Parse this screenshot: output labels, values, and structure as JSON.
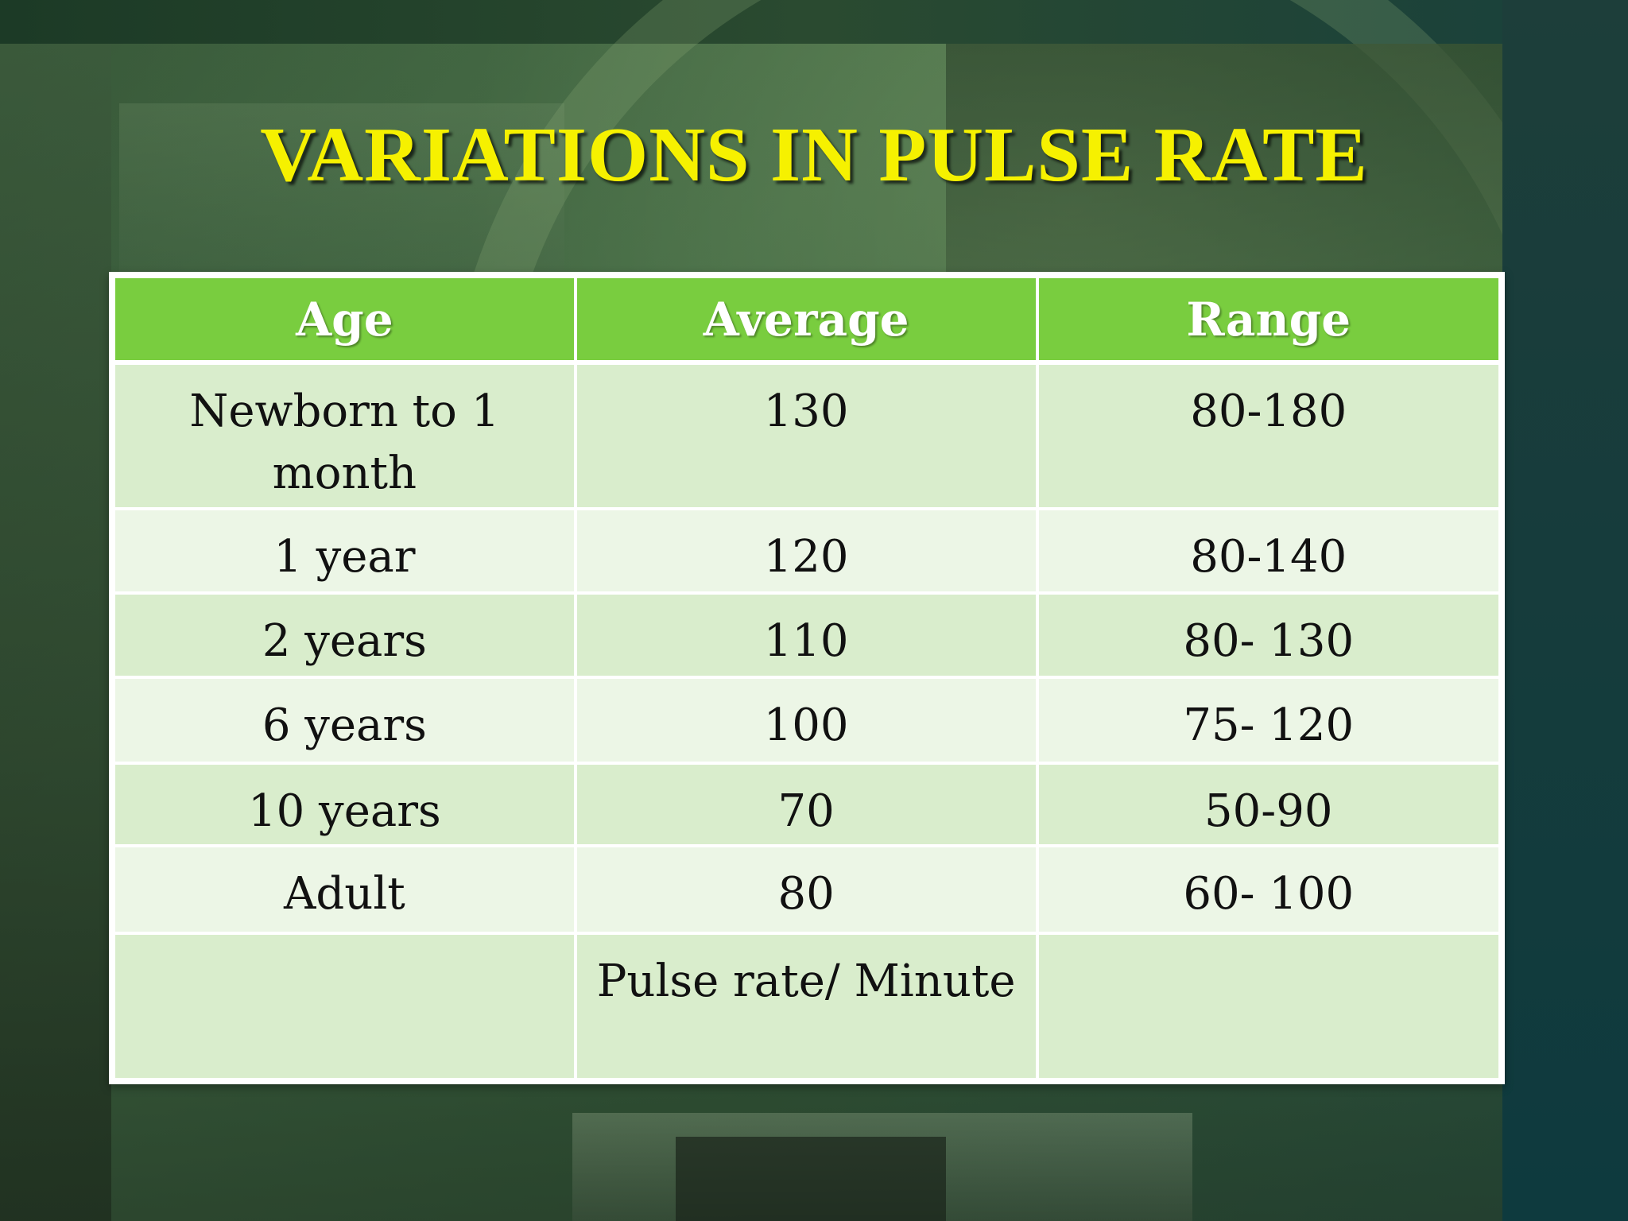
{
  "slide": {
    "title": "VARIATIONS IN PULSE RATE",
    "colors": {
      "title": "#f6f100",
      "header_bg": "#79cd3f",
      "row_odd_bg": "#d9edcc",
      "row_even_bg": "#ecf6e6"
    }
  },
  "table": {
    "headers": [
      "Age",
      "Average",
      "Range"
    ],
    "rows": [
      [
        "Newborn to 1 month",
        "130",
        "80-180"
      ],
      [
        "1 year",
        "120",
        "80-140"
      ],
      [
        "2 years",
        "110",
        "80- 130"
      ],
      [
        "6 years",
        "100",
        "75- 120"
      ],
      [
        "10 years",
        "70",
        "50-90"
      ],
      [
        "Adult",
        "80",
        "60- 100"
      ],
      [
        "",
        "Pulse rate/ Minute",
        ""
      ]
    ]
  }
}
